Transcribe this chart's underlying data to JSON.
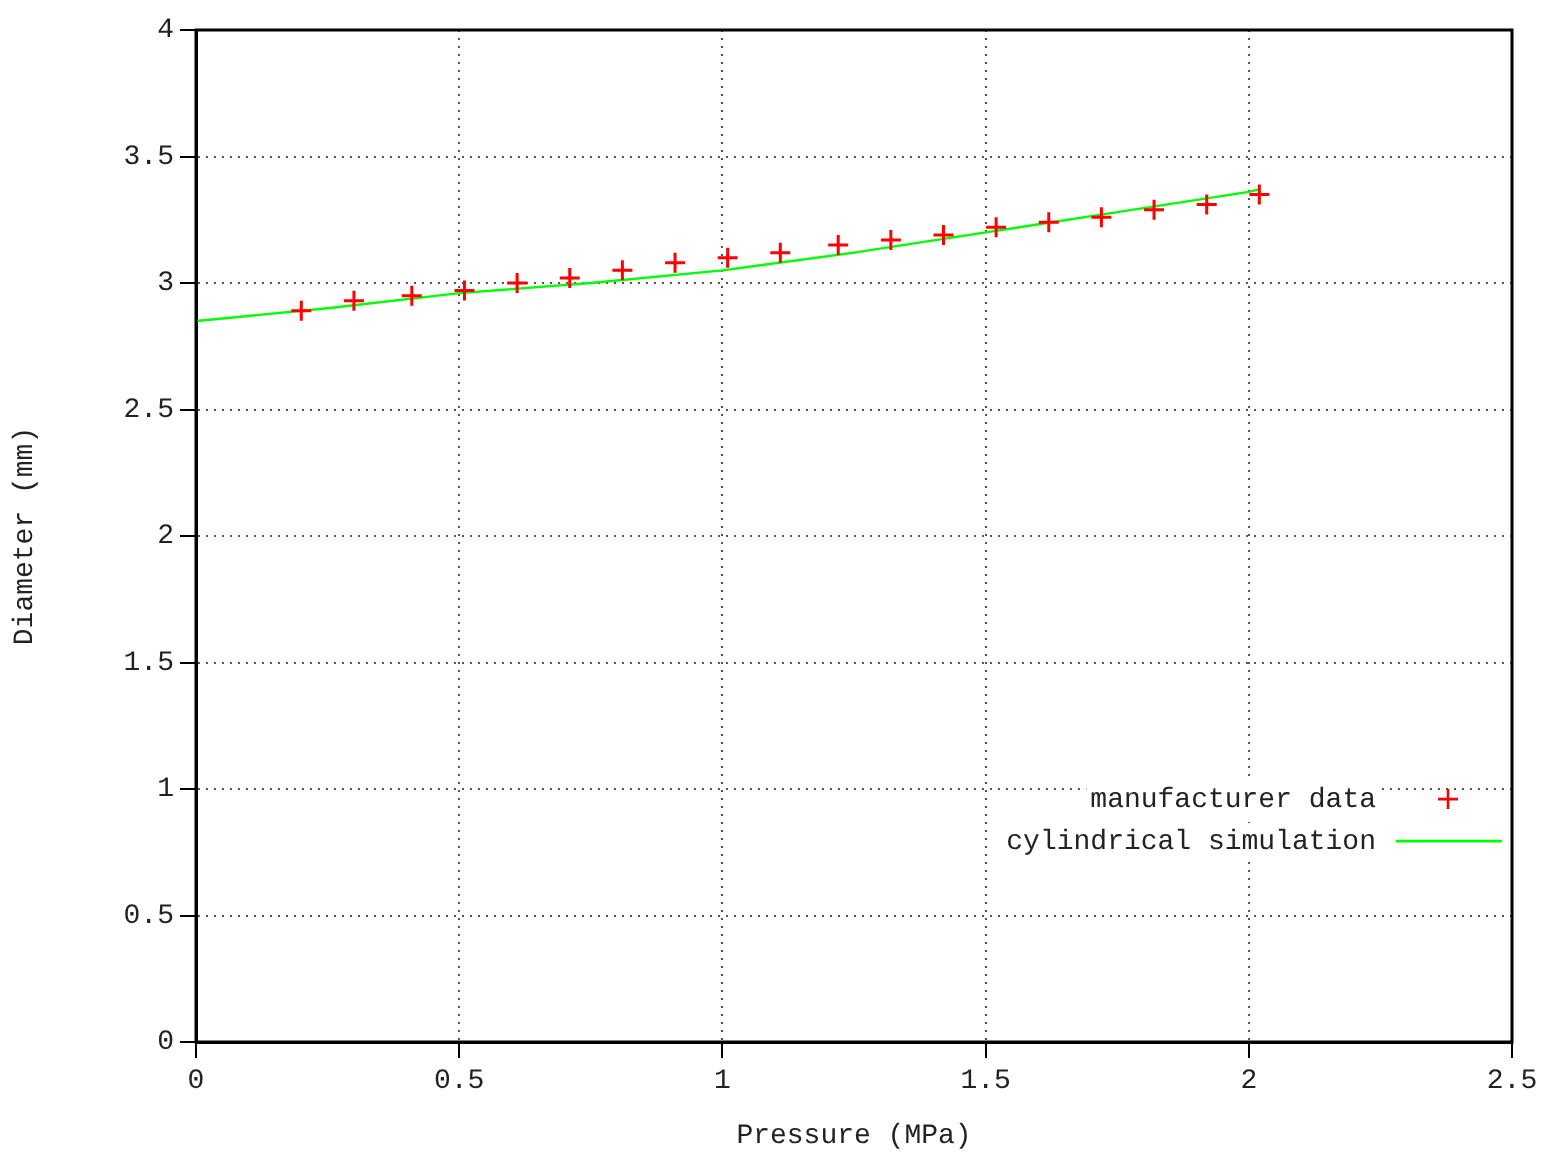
{
  "chart_data": {
    "type": "scatter",
    "xlabel": "Pressure (MPa)",
    "ylabel": "Diameter (mm)",
    "xlim": [
      0,
      2.5
    ],
    "xticks": [
      0,
      0.5,
      1,
      1.5,
      2,
      2.5
    ],
    "ylim": [
      0,
      4
    ],
    "yticks": [
      0,
      0.5,
      1,
      1.5,
      2,
      2.5,
      3,
      3.5,
      4
    ],
    "grid": true,
    "legend": "right",
    "series": [
      {
        "name": "manufacturer data",
        "marker": "cross",
        "color": "#ff0000",
        "x": [
          0.2,
          0.3,
          0.41,
          0.51,
          0.61,
          0.71,
          0.81,
          0.91,
          1.01,
          1.11,
          1.22,
          1.32,
          1.42,
          1.52,
          1.62,
          1.72,
          1.82,
          1.92,
          2.02
        ],
        "values": [
          2.89,
          2.93,
          2.95,
          2.97,
          3.0,
          3.02,
          3.05,
          3.08,
          3.1,
          3.12,
          3.15,
          3.17,
          3.19,
          3.22,
          3.24,
          3.26,
          3.29,
          3.31,
          3.35
        ]
      },
      {
        "name": "cylindrical simulation",
        "type": "line",
        "marker": "none",
        "color": "#00ff00",
        "x": [
          0,
          0.25,
          0.5,
          0.75,
          1,
          1.25,
          1.5,
          1.75,
          2,
          2.02
        ],
        "values": [
          2.85,
          2.9,
          2.96,
          3.0,
          3.05,
          3.12,
          3.2,
          3.28,
          3.36,
          3.37
        ]
      }
    ]
  }
}
